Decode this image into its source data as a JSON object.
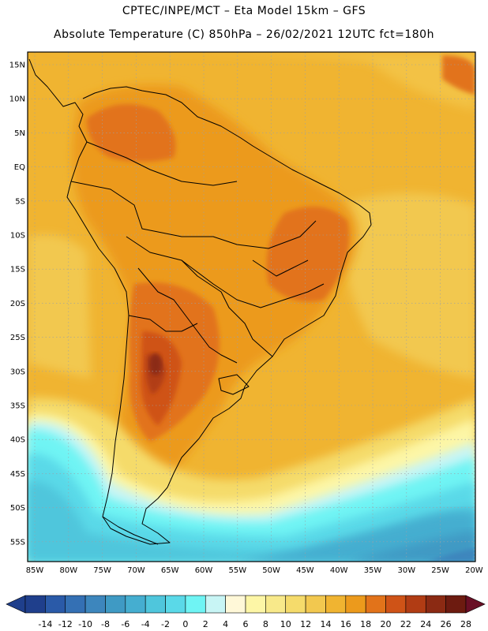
{
  "header": {
    "line1": "CPTEC/INPE/MCT –  Eta Model 15km – GFS",
    "line2": "Absolute Temperature (C) 850hPa – 26/02/2021 12UTC fct=180h"
  },
  "map": {
    "lat_labels": [
      "15N",
      "10N",
      "5N",
      "EQ",
      "5S",
      "10S",
      "15S",
      "20S",
      "25S",
      "30S",
      "35S",
      "40S",
      "45S",
      "50S",
      "55S"
    ],
    "lon_labels": [
      "85W",
      "80W",
      "75W",
      "70W",
      "65W",
      "60W",
      "55W",
      "50W",
      "45W",
      "40W",
      "35W",
      "30W",
      "25W",
      "20W"
    ]
  },
  "colorbar": {
    "labels": [
      "-14",
      "-12",
      "-10",
      "-8",
      "-6",
      "-4",
      "-2",
      "0",
      "2",
      "4",
      "6",
      "8",
      "10",
      "12",
      "14",
      "16",
      "18",
      "20",
      "22",
      "24",
      "26",
      "28"
    ],
    "colors": [
      "#1f3f8c",
      "#2a5aa8",
      "#3470b4",
      "#3d86bd",
      "#3f9ac4",
      "#45aed0",
      "#4fc6dc",
      "#5ad9e8",
      "#6ff4f4",
      "#c8f5f5",
      "#fff8d8",
      "#fdf6a6",
      "#f8e98a",
      "#f5db6b",
      "#f2c84f",
      "#f0b431",
      "#ec9a1c",
      "#e2731a",
      "#cf5317",
      "#b13c14",
      "#8b2a13",
      "#6d1b10"
    ]
  }
}
